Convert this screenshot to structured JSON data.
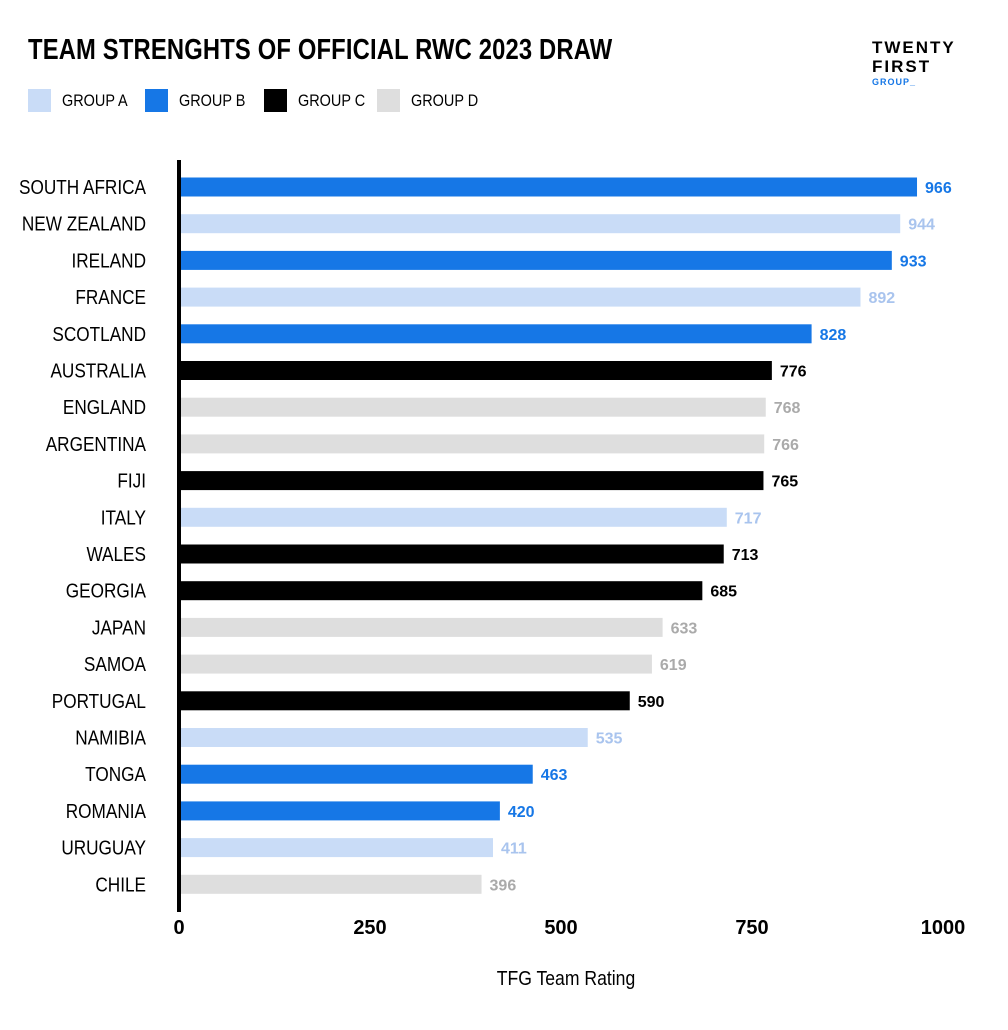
{
  "title": "TEAM STRENGHTS OF OFFICIAL RWC 2023 DRAW",
  "logo": {
    "line1": "TWENTY",
    "line2": "FIRST",
    "line3": "GROUP_"
  },
  "legend": [
    {
      "name": "GROUP A",
      "color": "#c9dcf7"
    },
    {
      "name": "GROUP B",
      "color": "#1677e6"
    },
    {
      "name": "GROUP C",
      "color": "#000000"
    },
    {
      "name": "GROUP D",
      "color": "#dedede"
    }
  ],
  "chart_data": {
    "type": "bar",
    "orientation": "horizontal",
    "title": "TEAM STRENGHTS OF OFFICIAL RWC 2023 DRAW",
    "xlabel": "TFG Team Rating",
    "ylabel": "",
    "xlim": [
      0,
      1000
    ],
    "xticks": [
      0,
      250,
      500,
      750,
      1000
    ],
    "grid": false,
    "legend_position": "top-left",
    "group_colors": {
      "GROUP A": "#c9dcf7",
      "GROUP B": "#1677e6",
      "GROUP C": "#000000",
      "GROUP D": "#dedede"
    },
    "group_label_colors": {
      "GROUP A": "#a9c4ee",
      "GROUP B": "#1677e6",
      "GROUP C": "#000000",
      "GROUP D": "#aaaaaa"
    },
    "categories": [
      "SOUTH AFRICA",
      "NEW ZEALAND",
      "IRELAND",
      "FRANCE",
      "SCOTLAND",
      "AUSTRALIA",
      "ENGLAND",
      "ARGENTINA",
      "FIJI",
      "ITALY",
      "WALES",
      "GEORGIA",
      "JAPAN",
      "SAMOA",
      "PORTUGAL",
      "NAMIBIA",
      "TONGA",
      "ROMANIA",
      "URUGUAY",
      "CHILE"
    ],
    "values": [
      966,
      944,
      933,
      892,
      828,
      776,
      768,
      766,
      765,
      717,
      713,
      685,
      633,
      619,
      590,
      535,
      463,
      420,
      411,
      396
    ],
    "groups": [
      "GROUP B",
      "GROUP A",
      "GROUP B",
      "GROUP A",
      "GROUP B",
      "GROUP C",
      "GROUP D",
      "GROUP D",
      "GROUP C",
      "GROUP A",
      "GROUP C",
      "GROUP C",
      "GROUP D",
      "GROUP D",
      "GROUP C",
      "GROUP A",
      "GROUP B",
      "GROUP B",
      "GROUP A",
      "GROUP D"
    ]
  }
}
